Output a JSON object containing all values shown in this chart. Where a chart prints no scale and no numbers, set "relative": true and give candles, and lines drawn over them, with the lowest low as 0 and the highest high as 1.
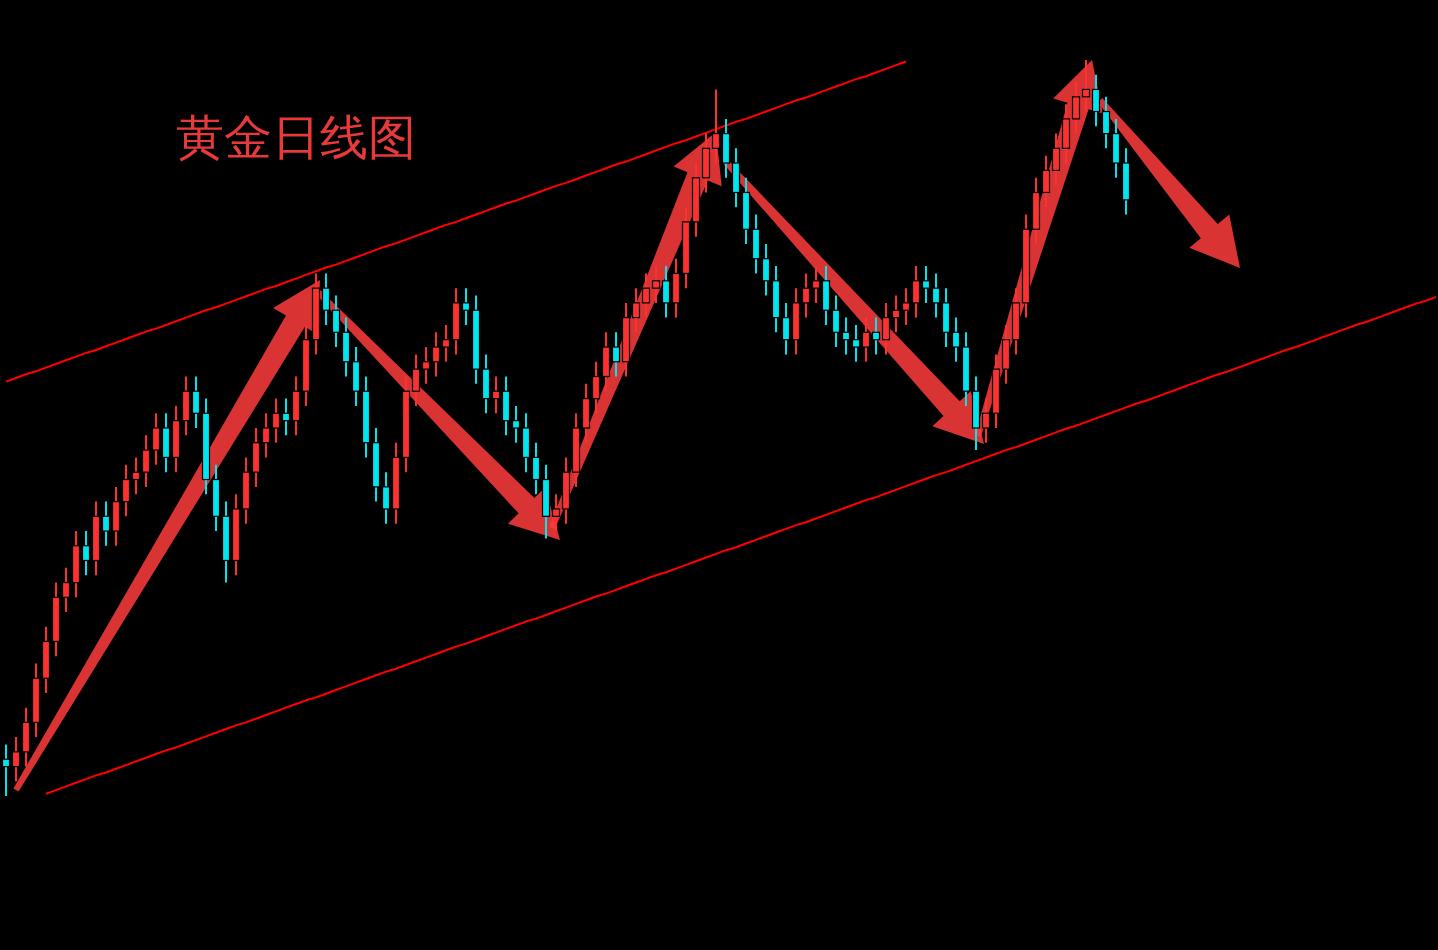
{
  "chart_data": {
    "type": "candlestick",
    "title": "黄金日线图",
    "relative": true,
    "categories": [
      null,
      null,
      null,
      null,
      null,
      null,
      null,
      null,
      null,
      null,
      null,
      null,
      null,
      null,
      null,
      null,
      null,
      null,
      null,
      null,
      null,
      null,
      null,
      null,
      null,
      null,
      null,
      null,
      null,
      null,
      null,
      null,
      null,
      null,
      null,
      null,
      null,
      null,
      null,
      null,
      null,
      null,
      null,
      null,
      null,
      null,
      null,
      null,
      null,
      null,
      null,
      null,
      null,
      null,
      null,
      null,
      null,
      null,
      null,
      null,
      null,
      null,
      null,
      null,
      null,
      null,
      null,
      null,
      null,
      null,
      null,
      null,
      null,
      null,
      null,
      null,
      null,
      null,
      null,
      null,
      null,
      null,
      null,
      null,
      null,
      null,
      null,
      null,
      null,
      null,
      null,
      null,
      null,
      null,
      null,
      null,
      null,
      null,
      null,
      null,
      null,
      null,
      null,
      null,
      null,
      null,
      null,
      null,
      null,
      null,
      null,
      null,
      null,
      null,
      null,
      null,
      null,
      null,
      null,
      null,
      null,
      null,
      null,
      null,
      null,
      null,
      null,
      null,
      null,
      null,
      null,
      null,
      null,
      null,
      null,
      null,
      null,
      null,
      null,
      null,
      null,
      null,
      null,
      null
    ],
    "colors": [
      "#00e5ee",
      "#ff3030",
      "#ff3030",
      "#ff3030",
      "#ff3030",
      "#ff3030",
      "#ff3030",
      "#ff3030",
      "#00e5ee",
      "#ff3030",
      "#00e5ee",
      "#ff3030",
      "#ff3030",
      "#ff3030",
      "#ff3030",
      "#ff3030",
      "#00e5ee",
      "#ff3030",
      "#ff3030",
      "#00e5ee",
      "#00e5ee",
      "#00e5ee",
      "#00e5ee",
      "#ff3030",
      "#ff3030",
      "#ff3030",
      "#ff3030",
      "#ff3030",
      "#00e5ee",
      "#ff3030",
      "#ff3030",
      "#ff3030",
      "#00e5ee",
      "#00e5ee",
      "#00e5ee",
      "#00e5ee",
      "#00e5ee",
      "#00e5ee",
      "#00e5ee",
      "#ff3030",
      "#ff3030",
      "#ff3030",
      "#ff3030",
      "#ff3030",
      "#ff3030",
      "#ff3030",
      "#00e5ee",
      "#00e5ee",
      "#00e5ee",
      "#ff3030",
      "#00e5ee",
      "#00e5ee",
      "#00e5ee",
      "#00e5ee",
      "#00e5ee",
      "#ff3030",
      "#ff3030",
      "#ff3030",
      "#ff3030",
      "#ff3030",
      "#ff3030",
      "#00e5ee",
      "#ff3030",
      "#ff3030",
      "#ff3030",
      "#ff3030",
      "#00e5ee",
      "#ff3030",
      "#ff3030",
      "#ff3030",
      "#ff3030",
      "#ff3030",
      "#00e5ee",
      "#00e5ee",
      "#00e5ee",
      "#00e5ee",
      "#00e5ee",
      "#00e5ee",
      "#00e5ee",
      "#ff3030",
      "#ff3030",
      "#ff3030",
      "#00e5ee",
      "#00e5ee",
      "#00e5ee",
      "#00e5ee",
      "#ff3030",
      "#00e5ee",
      "#ff3030",
      "#ff3030",
      "#ff3030",
      "#ff3030",
      "#00e5ee",
      "#00e5ee",
      "#00e5ee",
      "#00e5ee",
      "#00e5ee",
      "#00e5ee",
      "#ff3030",
      "#ff3030",
      "#ff3030",
      "#ff3030",
      "#ff3030",
      "#ff3030",
      "#ff3030",
      "#ff3030",
      "#ff3030",
      "#ff3030",
      "#ff3030",
      "#00e5ee",
      "#00e5ee",
      "#00e5ee",
      "#00e5ee",
      null,
      null,
      null,
      null,
      null,
      null,
      null,
      null,
      null,
      null,
      null,
      null,
      null,
      null,
      null,
      null,
      null,
      null,
      null,
      null,
      null,
      null,
      null,
      null,
      null,
      null,
      null,
      null,
      null,
      null,
      null
    ],
    "ohlc": [
      [
        0.05,
        0.07,
        0.0,
        0.04
      ],
      [
        0.04,
        0.08,
        0.02,
        0.06
      ],
      [
        0.06,
        0.12,
        0.04,
        0.1
      ],
      [
        0.1,
        0.18,
        0.08,
        0.16
      ],
      [
        0.16,
        0.23,
        0.14,
        0.21
      ],
      [
        0.21,
        0.29,
        0.19,
        0.27
      ],
      [
        0.27,
        0.31,
        0.25,
        0.29
      ],
      [
        0.29,
        0.36,
        0.27,
        0.34
      ],
      [
        0.34,
        0.36,
        0.3,
        0.32
      ],
      [
        0.32,
        0.4,
        0.3,
        0.38
      ],
      [
        0.38,
        0.4,
        0.34,
        0.36
      ],
      [
        0.36,
        0.42,
        0.34,
        0.4
      ],
      [
        0.4,
        0.45,
        0.38,
        0.43
      ],
      [
        0.43,
        0.46,
        0.41,
        0.44
      ],
      [
        0.44,
        0.49,
        0.42,
        0.47
      ],
      [
        0.47,
        0.52,
        0.45,
        0.5
      ],
      [
        0.5,
        0.52,
        0.44,
        0.46
      ],
      [
        0.46,
        0.53,
        0.44,
        0.51
      ],
      [
        0.51,
        0.57,
        0.49,
        0.55
      ],
      [
        0.55,
        0.57,
        0.5,
        0.52
      ],
      [
        0.52,
        0.54,
        0.41,
        0.43
      ],
      [
        0.43,
        0.45,
        0.36,
        0.38
      ],
      [
        0.38,
        0.4,
        0.29,
        0.32
      ],
      [
        0.32,
        0.41,
        0.3,
        0.39
      ],
      [
        0.39,
        0.46,
        0.37,
        0.44
      ],
      [
        0.44,
        0.5,
        0.42,
        0.48
      ],
      [
        0.48,
        0.52,
        0.46,
        0.5
      ],
      [
        0.5,
        0.54,
        0.48,
        0.52
      ],
      [
        0.52,
        0.54,
        0.49,
        0.51
      ],
      [
        0.51,
        0.57,
        0.49,
        0.55
      ],
      [
        0.55,
        0.64,
        0.53,
        0.62
      ],
      [
        0.62,
        0.71,
        0.6,
        0.69
      ],
      [
        0.69,
        0.71,
        0.64,
        0.66
      ],
      [
        0.66,
        0.68,
        0.61,
        0.63
      ],
      [
        0.63,
        0.65,
        0.57,
        0.59
      ],
      [
        0.59,
        0.61,
        0.53,
        0.55
      ],
      [
        0.55,
        0.57,
        0.46,
        0.48
      ],
      [
        0.48,
        0.5,
        0.4,
        0.42
      ],
      [
        0.42,
        0.44,
        0.37,
        0.39
      ],
      [
        0.39,
        0.48,
        0.37,
        0.46
      ],
      [
        0.46,
        0.57,
        0.44,
        0.55
      ],
      [
        0.55,
        0.6,
        0.53,
        0.58
      ],
      [
        0.58,
        0.61,
        0.56,
        0.59
      ],
      [
        0.59,
        0.63,
        0.57,
        0.61
      ],
      [
        0.61,
        0.64,
        0.59,
        0.62
      ],
      [
        0.62,
        0.69,
        0.6,
        0.67
      ],
      [
        0.67,
        0.69,
        0.64,
        0.66
      ],
      [
        0.66,
        0.68,
        0.56,
        0.58
      ],
      [
        0.58,
        0.6,
        0.52,
        0.54
      ],
      [
        0.54,
        0.57,
        0.52,
        0.55
      ],
      [
        0.55,
        0.57,
        0.49,
        0.51
      ],
      [
        0.51,
        0.53,
        0.48,
        0.5
      ],
      [
        0.5,
        0.52,
        0.44,
        0.46
      ],
      [
        0.46,
        0.48,
        0.41,
        0.43
      ],
      [
        0.43,
        0.45,
        0.35,
        0.38
      ],
      [
        0.38,
        0.41,
        0.36,
        0.39
      ],
      [
        0.39,
        0.46,
        0.37,
        0.44
      ],
      [
        0.44,
        0.52,
        0.42,
        0.5
      ],
      [
        0.5,
        0.56,
        0.48,
        0.54
      ],
      [
        0.54,
        0.59,
        0.52,
        0.57
      ],
      [
        0.57,
        0.63,
        0.55,
        0.61
      ],
      [
        0.61,
        0.63,
        0.57,
        0.59
      ],
      [
        0.59,
        0.67,
        0.57,
        0.65
      ],
      [
        0.65,
        0.69,
        0.63,
        0.67
      ],
      [
        0.67,
        0.71,
        0.65,
        0.69
      ],
      [
        0.69,
        0.72,
        0.67,
        0.7
      ],
      [
        0.7,
        0.72,
        0.65,
        0.67
      ],
      [
        0.67,
        0.73,
        0.65,
        0.71
      ],
      [
        0.71,
        0.8,
        0.69,
        0.78
      ],
      [
        0.78,
        0.86,
        0.76,
        0.84
      ],
      [
        0.84,
        0.9,
        0.82,
        0.88
      ],
      [
        0.88,
        0.96,
        0.86,
        0.9
      ],
      [
        0.9,
        0.92,
        0.84,
        0.86
      ],
      [
        0.86,
        0.88,
        0.8,
        0.82
      ],
      [
        0.82,
        0.84,
        0.75,
        0.77
      ],
      [
        0.77,
        0.79,
        0.71,
        0.73
      ],
      [
        0.73,
        0.75,
        0.68,
        0.7
      ],
      [
        0.7,
        0.72,
        0.63,
        0.65
      ],
      [
        0.65,
        0.67,
        0.6,
        0.62
      ],
      [
        0.62,
        0.69,
        0.6,
        0.67
      ],
      [
        0.67,
        0.71,
        0.65,
        0.69
      ],
      [
        0.69,
        0.72,
        0.67,
        0.7
      ],
      [
        0.7,
        0.72,
        0.64,
        0.66
      ],
      [
        0.66,
        0.68,
        0.61,
        0.63
      ],
      [
        0.63,
        0.65,
        0.6,
        0.62
      ],
      [
        0.62,
        0.64,
        0.59,
        0.61
      ],
      [
        0.61,
        0.65,
        0.59,
        0.63
      ],
      [
        0.63,
        0.65,
        0.6,
        0.62
      ],
      [
        0.62,
        0.67,
        0.6,
        0.65
      ],
      [
        0.65,
        0.68,
        0.63,
        0.66
      ],
      [
        0.66,
        0.69,
        0.64,
        0.67
      ],
      [
        0.67,
        0.72,
        0.65,
        0.7
      ],
      [
        0.7,
        0.72,
        0.67,
        0.69
      ],
      [
        0.69,
        0.71,
        0.65,
        0.67
      ],
      [
        0.67,
        0.69,
        0.61,
        0.63
      ],
      [
        0.63,
        0.65,
        0.59,
        0.61
      ],
      [
        0.61,
        0.63,
        0.53,
        0.55
      ],
      [
        0.55,
        0.57,
        0.47,
        0.5
      ],
      [
        0.5,
        0.54,
        0.48,
        0.52
      ],
      [
        0.52,
        0.6,
        0.5,
        0.58
      ],
      [
        0.58,
        0.64,
        0.56,
        0.62
      ],
      [
        0.62,
        0.69,
        0.6,
        0.67
      ],
      [
        0.67,
        0.79,
        0.65,
        0.77
      ],
      [
        0.77,
        0.84,
        0.75,
        0.82
      ],
      [
        0.82,
        0.87,
        0.8,
        0.85
      ],
      [
        0.85,
        0.9,
        0.83,
        0.88
      ],
      [
        0.88,
        0.94,
        0.86,
        0.92
      ],
      [
        0.92,
        0.97,
        0.9,
        0.95
      ],
      [
        0.95,
        1.0,
        0.93,
        0.96
      ],
      [
        0.96,
        0.98,
        0.91,
        0.93
      ],
      [
        0.93,
        0.95,
        0.88,
        0.9
      ],
      [
        0.9,
        0.92,
        0.84,
        0.86
      ],
      [
        0.86,
        0.88,
        0.79,
        0.81
      ],
      null,
      null,
      null,
      null,
      null,
      null,
      null,
      null,
      null,
      null,
      null,
      null,
      null,
      null,
      null,
      null,
      null,
      null,
      null,
      null,
      null,
      null,
      null,
      null,
      null,
      null,
      null,
      null,
      null,
      null,
      null
    ],
    "series": [
      {
        "type": "line",
        "color": "#ff0000",
        "values": [
          0.563,
          0.568,
          0.573,
          0.577,
          0.582,
          0.587,
          0.592,
          0.597,
          0.602,
          0.606,
          0.611,
          0.616,
          0.621,
          0.626,
          0.631,
          0.635,
          0.64,
          0.645,
          0.65,
          0.655,
          0.66,
          0.664,
          0.669,
          0.674,
          0.679,
          0.684,
          0.689,
          0.693,
          0.698,
          0.703,
          0.708,
          0.713,
          0.718,
          0.722,
          0.727,
          0.732,
          0.737,
          0.742,
          0.747,
          0.751,
          0.756,
          0.761,
          0.766,
          0.771,
          0.776,
          0.78,
          0.785,
          0.79,
          0.795,
          0.8,
          0.805,
          0.809,
          0.814,
          0.819,
          0.824,
          0.829,
          0.833,
          0.838,
          0.843,
          0.848,
          0.853,
          0.858,
          0.862,
          0.867,
          0.872,
          0.877,
          0.882,
          0.887,
          0.891,
          0.896,
          0.901,
          0.906,
          0.911,
          0.916,
          0.92,
          0.925,
          0.93,
          0.935,
          0.94,
          0.945,
          0.949,
          0.954,
          0.959,
          0.964,
          0.969,
          0.974,
          0.978,
          0.983,
          0.988,
          0.993,
          0.998,
          null,
          null,
          null,
          null,
          null,
          null,
          null,
          null,
          null,
          null,
          null,
          null,
          null,
          null,
          null,
          null,
          null,
          null,
          null,
          null,
          null,
          null,
          null,
          null,
          null,
          null,
          null,
          null,
          null,
          null,
          null,
          null,
          null,
          null,
          null,
          null,
          null,
          null,
          null,
          null,
          null,
          null,
          null,
          null,
          null,
          null,
          null,
          null,
          null,
          null,
          null,
          null,
          null
        ]
      },
      {
        "type": "line",
        "color": "#ff0000",
        "values": [
          null,
          null,
          null,
          null,
          0.003,
          0.008,
          0.013,
          0.018,
          0.023,
          0.028,
          0.032,
          0.037,
          0.042,
          0.047,
          0.052,
          0.057,
          0.062,
          0.066,
          0.071,
          0.076,
          0.081,
          0.086,
          0.091,
          0.096,
          0.1,
          0.105,
          0.11,
          0.115,
          0.12,
          0.125,
          0.13,
          0.134,
          0.139,
          0.144,
          0.149,
          0.154,
          0.159,
          0.164,
          0.169,
          0.173,
          0.178,
          0.183,
          0.188,
          0.193,
          0.198,
          0.203,
          0.207,
          0.212,
          0.217,
          0.222,
          0.227,
          0.232,
          0.237,
          0.241,
          0.246,
          0.251,
          0.256,
          0.261,
          0.266,
          0.271,
          0.275,
          0.28,
          0.285,
          0.29,
          0.295,
          0.3,
          0.304,
          0.309,
          0.314,
          0.319,
          0.324,
          0.329,
          0.334,
          0.338,
          0.343,
          0.348,
          0.353,
          0.358,
          0.363,
          0.368,
          0.372,
          0.377,
          0.382,
          0.387,
          0.392,
          0.397,
          0.402,
          0.406,
          0.411,
          0.416,
          0.421,
          0.426,
          0.431,
          0.436,
          0.44,
          0.445,
          0.45,
          0.455,
          0.46,
          0.465,
          0.47,
          0.474,
          0.479,
          0.484,
          0.489,
          0.494,
          0.499,
          0.503,
          0.508,
          0.513,
          0.518,
          0.523,
          0.528,
          0.533,
          0.537,
          0.542,
          0.547,
          0.552,
          0.557,
          0.562,
          0.567,
          0.572,
          0.576,
          0.581,
          0.586,
          0.591,
          0.596,
          0.601,
          0.606,
          0.61,
          0.615,
          0.62,
          0.625,
          0.63,
          0.635,
          0.64,
          0.644,
          0.649,
          0.654,
          0.659,
          0.664,
          0.669,
          0.673,
          0.678
        ]
      }
    ]
  }
}
